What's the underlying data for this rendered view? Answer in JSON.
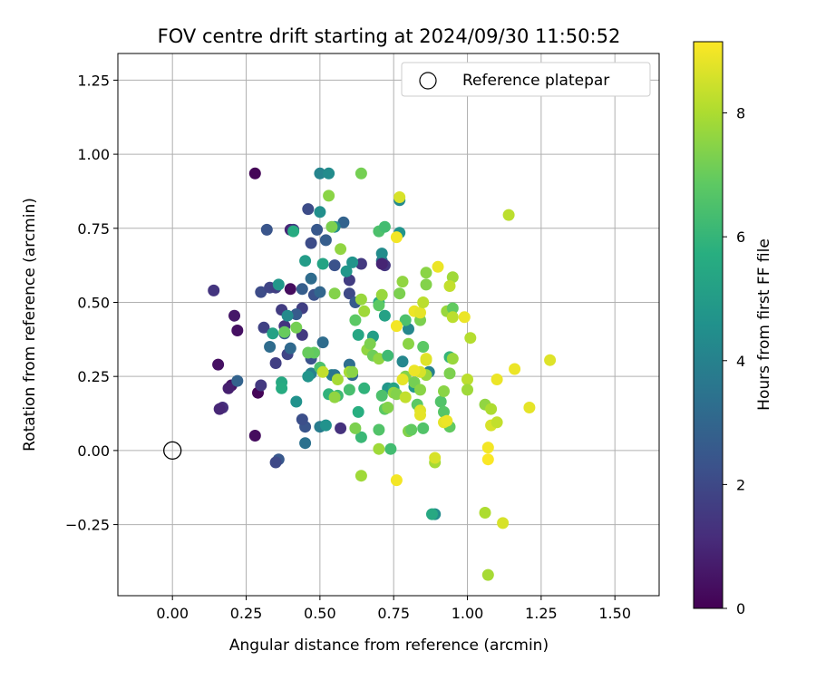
{
  "chart_data": {
    "type": "scatter",
    "title": "FOV centre drift starting at 2024/09/30 11:50:52",
    "xlabel": "Angular distance from reference (arcmin)",
    "ylabel": "Rotation from reference (arcmin)",
    "xlim": [
      -0.185,
      1.65
    ],
    "ylim": [
      -0.49,
      1.34
    ],
    "xticks": [
      0.0,
      0.25,
      0.5,
      0.75,
      1.0,
      1.25,
      1.5
    ],
    "xtick_labels": [
      "0.00",
      "0.25",
      "0.50",
      "0.75",
      "1.00",
      "1.25",
      "1.50"
    ],
    "yticks": [
      -0.25,
      0.0,
      0.25,
      0.5,
      0.75,
      1.0,
      1.25
    ],
    "ytick_labels": [
      "−0.25",
      "0.00",
      "0.25",
      "0.50",
      "0.75",
      "1.00",
      "1.25"
    ],
    "grid": true,
    "legend": {
      "position": "top-right",
      "entries": [
        {
          "label": "Reference platepar",
          "marker": "open-circle"
        }
      ]
    },
    "reference_point": {
      "x": 0.0,
      "y": 0.0
    },
    "colorbar": {
      "label": "Hours from first FF file",
      "colormap": "viridis",
      "range": [
        0,
        9.15
      ],
      "ticks": [
        0,
        2,
        4,
        6,
        8
      ],
      "tick_labels": [
        "0",
        "2",
        "4",
        "6",
        "8"
      ]
    },
    "points": [
      [
        0.28,
        0.935,
        0.1
      ],
      [
        0.29,
        0.195,
        0.1
      ],
      [
        0.28,
        0.05,
        0.3
      ],
      [
        0.4,
        0.545,
        0.3
      ],
      [
        0.155,
        0.29,
        0.4
      ],
      [
        0.21,
        0.455,
        0.6
      ],
      [
        0.22,
        0.405,
        0.4
      ],
      [
        0.2,
        0.22,
        0.5
      ],
      [
        0.19,
        0.21,
        0.8
      ],
      [
        0.17,
        0.145,
        1.2
      ],
      [
        0.16,
        0.14,
        1.0
      ],
      [
        0.14,
        0.54,
        1.4
      ],
      [
        0.3,
        0.22,
        1.5
      ],
      [
        0.31,
        0.415,
        1.8
      ],
      [
        0.3,
        0.535,
        2.1
      ],
      [
        0.33,
        0.55,
        1.9
      ],
      [
        0.35,
        0.55,
        1.7
      ],
      [
        0.32,
        0.745,
        2.4
      ],
      [
        0.35,
        0.295,
        1.7
      ],
      [
        0.37,
        0.475,
        1.6
      ],
      [
        0.38,
        0.42,
        1.4
      ],
      [
        0.39,
        0.325,
        1.9
      ],
      [
        0.4,
        0.745,
        1.0
      ],
      [
        0.41,
        0.745,
        1.5
      ],
      [
        0.44,
        0.39,
        1.5
      ],
      [
        0.44,
        0.48,
        1.7
      ],
      [
        0.46,
        0.815,
        2.1
      ],
      [
        0.47,
        0.7,
        2.1
      ],
      [
        0.45,
        0.08,
        2.4
      ],
      [
        0.44,
        0.105,
        2.2
      ],
      [
        0.36,
        -0.03,
        2.5
      ],
      [
        0.35,
        -0.04,
        2.0
      ],
      [
        0.45,
        0.025,
        3.4
      ],
      [
        0.22,
        0.235,
        2.9
      ],
      [
        0.33,
        0.35,
        3.2
      ],
      [
        0.38,
        0.395,
        2.6
      ],
      [
        0.4,
        0.345,
        3.1
      ],
      [
        0.42,
        0.46,
        2.6
      ],
      [
        0.44,
        0.545,
        2.7
      ],
      [
        0.47,
        0.58,
        3.2
      ],
      [
        0.47,
        0.31,
        2.3
      ],
      [
        0.48,
        0.525,
        2.3
      ],
      [
        0.49,
        0.745,
        2.5
      ],
      [
        0.5,
        0.535,
        3.0
      ],
      [
        0.51,
        0.365,
        3.2
      ],
      [
        0.52,
        0.71,
        2.7
      ],
      [
        0.55,
        0.625,
        2.3
      ],
      [
        0.57,
        0.075,
        1.3
      ],
      [
        0.58,
        0.77,
        2.9
      ],
      [
        0.6,
        0.575,
        1.6
      ],
      [
        0.6,
        0.29,
        3.3
      ],
      [
        0.61,
        0.255,
        3.1
      ],
      [
        0.64,
        0.63,
        1.5
      ],
      [
        0.6,
        0.53,
        2.0
      ],
      [
        0.62,
        0.5,
        2.6
      ],
      [
        0.5,
        0.935,
        4.1
      ],
      [
        0.53,
        0.935,
        4.4
      ],
      [
        0.5,
        0.805,
        4.5
      ],
      [
        0.55,
        0.755,
        4.4
      ],
      [
        0.54,
        0.255,
        3.9
      ],
      [
        0.55,
        0.255,
        3.5
      ],
      [
        0.5,
        0.08,
        3.8
      ],
      [
        0.52,
        0.085,
        4.6
      ],
      [
        0.47,
        0.26,
        4.0
      ],
      [
        0.46,
        0.25,
        4.7
      ],
      [
        0.42,
        0.165,
        4.6
      ],
      [
        0.39,
        0.455,
        4.3
      ],
      [
        0.36,
        0.56,
        4.8
      ],
      [
        0.34,
        0.395,
        5.2
      ],
      [
        0.37,
        0.23,
        5.5
      ],
      [
        0.37,
        0.21,
        5.6
      ],
      [
        0.41,
        0.74,
        5.6
      ],
      [
        0.45,
        0.64,
        5.0
      ],
      [
        0.51,
        0.63,
        5.3
      ],
      [
        0.59,
        0.605,
        4.8
      ],
      [
        0.61,
        0.635,
        4.7
      ],
      [
        0.63,
        0.39,
        5.4
      ],
      [
        0.68,
        0.385,
        5.1
      ],
      [
        0.7,
        0.5,
        5.5
      ],
      [
        0.72,
        0.455,
        5.2
      ],
      [
        0.73,
        0.21,
        4.8
      ],
      [
        0.75,
        0.21,
        5.3
      ],
      [
        0.71,
        0.64,
        3.6
      ],
      [
        0.71,
        0.665,
        4.4
      ],
      [
        0.77,
        0.845,
        4.3
      ],
      [
        0.77,
        0.735,
        4.7
      ],
      [
        0.78,
        0.3,
        4.2
      ],
      [
        0.8,
        0.41,
        4.2
      ],
      [
        0.82,
        0.215,
        4.9
      ],
      [
        0.87,
        0.265,
        4.0
      ],
      [
        0.89,
        -0.215,
        4.4
      ],
      [
        0.88,
        -0.215,
        5.5
      ],
      [
        0.72,
        0.625,
        1.4
      ],
      [
        0.71,
        0.63,
        0.9
      ],
      [
        0.63,
        0.13,
        5.7
      ],
      [
        0.64,
        0.045,
        6.1
      ],
      [
        0.65,
        0.21,
        5.9
      ],
      [
        0.6,
        0.205,
        6.4
      ],
      [
        0.56,
        0.185,
        6.2
      ],
      [
        0.53,
        0.19,
        5.9
      ],
      [
        0.5,
        0.28,
        6.5
      ],
      [
        0.48,
        0.33,
        6.9
      ],
      [
        0.46,
        0.33,
        7.0
      ],
      [
        0.42,
        0.415,
        7.2
      ],
      [
        0.38,
        0.4,
        7.0
      ],
      [
        0.64,
        0.935,
        7.2
      ],
      [
        0.53,
        0.86,
        7.5
      ],
      [
        0.54,
        0.755,
        7.3
      ],
      [
        0.57,
        0.68,
        7.6
      ],
      [
        0.55,
        0.53,
        7.4
      ],
      [
        0.62,
        0.44,
        6.8
      ],
      [
        0.64,
        0.51,
        7.7
      ],
      [
        0.65,
        0.47,
        7.8
      ],
      [
        0.66,
        0.34,
        7.6
      ],
      [
        0.67,
        0.36,
        7.3
      ],
      [
        0.68,
        0.32,
        7.1
      ],
      [
        0.7,
        0.31,
        7.6
      ],
      [
        0.7,
        0.49,
        6.8
      ],
      [
        0.7,
        0.74,
        6.5
      ],
      [
        0.72,
        0.755,
        6.3
      ],
      [
        0.71,
        0.525,
        7.7
      ],
      [
        0.71,
        0.185,
        6.5
      ],
      [
        0.72,
        0.14,
        6.8
      ],
      [
        0.73,
        0.145,
        7.4
      ],
      [
        0.73,
        0.32,
        6.2
      ],
      [
        0.74,
        0.005,
        6.3
      ],
      [
        0.7,
        0.005,
        7.8
      ],
      [
        0.7,
        0.07,
        6.6
      ],
      [
        0.75,
        0.195,
        7.6
      ],
      [
        0.76,
        0.19,
        7.4
      ],
      [
        0.77,
        0.53,
        7.3
      ],
      [
        0.78,
        0.57,
        7.6
      ],
      [
        0.79,
        0.25,
        7.4
      ],
      [
        0.79,
        0.44,
        6.5
      ],
      [
        0.8,
        0.36,
        7.5
      ],
      [
        0.8,
        0.065,
        7.4
      ],
      [
        0.81,
        0.07,
        6.9
      ],
      [
        0.82,
        0.23,
        7.2
      ],
      [
        0.83,
        0.155,
        6.8
      ],
      [
        0.84,
        0.205,
        7.5
      ],
      [
        0.84,
        0.44,
        7.3
      ],
      [
        0.85,
        0.35,
        6.8
      ],
      [
        0.85,
        0.075,
        6.6
      ],
      [
        0.86,
        0.56,
        7.4
      ],
      [
        0.86,
        0.6,
        7.5
      ],
      [
        0.86,
        0.255,
        7.7
      ],
      [
        0.89,
        -0.04,
        7.9
      ],
      [
        0.91,
        0.165,
        6.6
      ],
      [
        0.92,
        0.13,
        6.7
      ],
      [
        0.92,
        0.2,
        7.5
      ],
      [
        0.93,
        0.47,
        7.7
      ],
      [
        0.94,
        0.26,
        7.3
      ],
      [
        0.94,
        0.315,
        6.0
      ],
      [
        0.94,
        0.08,
        6.9
      ],
      [
        0.95,
        0.48,
        6.9
      ],
      [
        0.95,
        0.585,
        7.8
      ],
      [
        0.95,
        0.31,
        7.7
      ],
      [
        0.62,
        0.075,
        7.3
      ],
      [
        0.64,
        -0.085,
        7.8
      ],
      [
        0.6,
        0.265,
        7.9
      ],
      [
        0.61,
        0.265,
        7.5
      ],
      [
        0.56,
        0.24,
        7.9
      ],
      [
        0.55,
        0.18,
        7.6
      ],
      [
        0.51,
        0.265,
        8.3
      ],
      [
        0.77,
        0.855,
        8.6
      ],
      [
        0.76,
        0.72,
        9.0
      ],
      [
        0.82,
        0.47,
        8.9
      ],
      [
        0.84,
        0.465,
        8.8
      ],
      [
        0.85,
        0.5,
        8.2
      ],
      [
        0.86,
        0.31,
        8.8
      ],
      [
        0.84,
        0.265,
        8.6
      ],
      [
        0.82,
        0.27,
        8.9
      ],
      [
        0.78,
        0.24,
        8.8
      ],
      [
        0.79,
        0.18,
        8.3
      ],
      [
        0.76,
        0.42,
        9.0
      ],
      [
        0.76,
        -0.1,
        9.0
      ],
      [
        0.84,
        0.135,
        8.7
      ],
      [
        0.84,
        0.12,
        8.8
      ],
      [
        0.86,
        0.305,
        8.7
      ],
      [
        0.9,
        0.62,
        8.9
      ],
      [
        0.89,
        -0.025,
        8.6
      ],
      [
        0.92,
        0.095,
        8.8
      ],
      [
        0.93,
        0.1,
        8.9
      ],
      [
        0.94,
        0.555,
        8.3
      ],
      [
        0.95,
        0.45,
        8.2
      ],
      [
        0.99,
        0.45,
        8.9
      ],
      [
        1.01,
        0.38,
        8.1
      ],
      [
        1.0,
        0.24,
        8.2
      ],
      [
        1.0,
        0.205,
        7.8
      ],
      [
        1.06,
        0.155,
        7.6
      ],
      [
        1.08,
        0.14,
        8.0
      ],
      [
        1.08,
        0.085,
        8.6
      ],
      [
        1.1,
        0.095,
        8.3
      ],
      [
        1.1,
        0.24,
        8.9
      ],
      [
        1.12,
        -0.245,
        8.6
      ],
      [
        1.06,
        -0.21,
        8.0
      ],
      [
        1.07,
        0.01,
        9.0
      ],
      [
        1.07,
        -0.03,
        9.1
      ],
      [
        1.07,
        -0.42,
        7.9
      ],
      [
        1.14,
        0.795,
        8.2
      ],
      [
        1.16,
        0.275,
        8.9
      ],
      [
        1.21,
        0.145,
        8.8
      ],
      [
        1.28,
        0.305,
        8.7
      ]
    ]
  }
}
